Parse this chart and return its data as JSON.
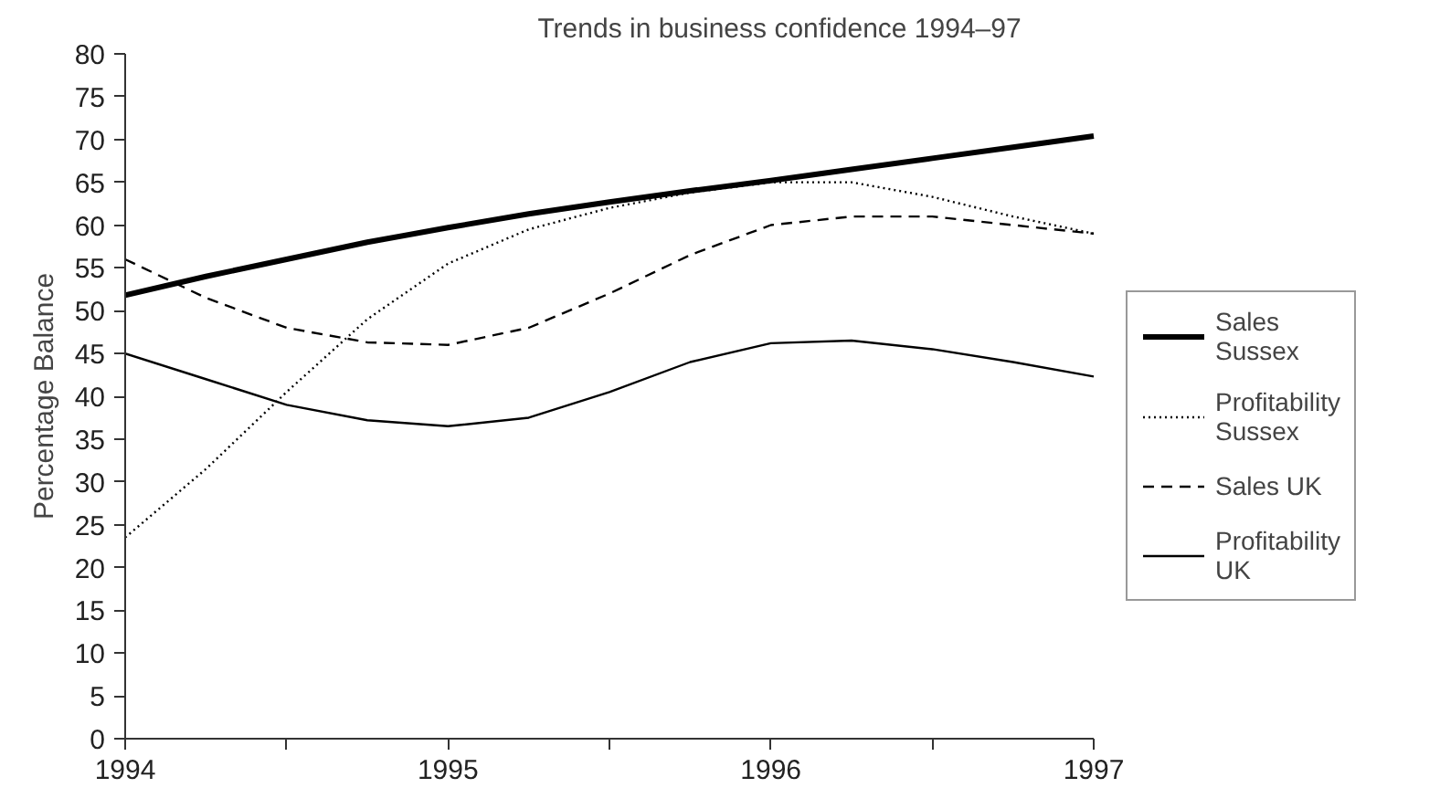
{
  "chart_data": {
    "type": "line",
    "title": "Trends in business confidence 1994–97",
    "ylabel": "Percentage Balance",
    "x": [
      1994,
      1994.25,
      1994.5,
      1994.75,
      1995,
      1995.25,
      1995.5,
      1995.75,
      1996,
      1996.25,
      1996.5,
      1996.75,
      1997
    ],
    "series": [
      {
        "name": "Sales Sussex",
        "color": "#000000",
        "line_style": "solid",
        "values": [
          51.8,
          54,
          56,
          58,
          59.7,
          61.3,
          62.7,
          64,
          65.2,
          66.5,
          67.8,
          69.1,
          70.4
        ]
      },
      {
        "name": "Profitability Sussex",
        "color": "#000000",
        "line_style": "dotted",
        "values": [
          23.5,
          31.5,
          40.5,
          49,
          55.5,
          59.5,
          62,
          63.8,
          65,
          65,
          63.3,
          61,
          59
        ]
      },
      {
        "name": "Sales UK",
        "color": "#000000",
        "line_style": "dashed",
        "values": [
          56,
          51.5,
          48,
          46.3,
          46,
          48,
          52,
          56.5,
          60,
          61,
          61,
          60,
          59
        ]
      },
      {
        "name": "Profitability UK",
        "color": "#000000",
        "line_style": "solid",
        "values": [
          45,
          42,
          39,
          37.2,
          36.5,
          37.5,
          40.5,
          44,
          46.2,
          46.5,
          45.5,
          44,
          42.3
        ]
      }
    ],
    "xlim": [
      1994,
      1997
    ],
    "ylim": [
      0,
      80
    ],
    "xticks": [
      1994,
      {
        "value": 1994.5,
        "label": null
      },
      1995,
      {
        "value": 1995.5,
        "label": null
      },
      1996,
      {
        "value": 1996.5,
        "label": null
      },
      1997
    ],
    "yticks": [
      0,
      5,
      10,
      15,
      20,
      25,
      30,
      35,
      40,
      45,
      50,
      55,
      60,
      65,
      70,
      75,
      80
    ],
    "grid": false,
    "legend": "right",
    "marker": "none"
  }
}
